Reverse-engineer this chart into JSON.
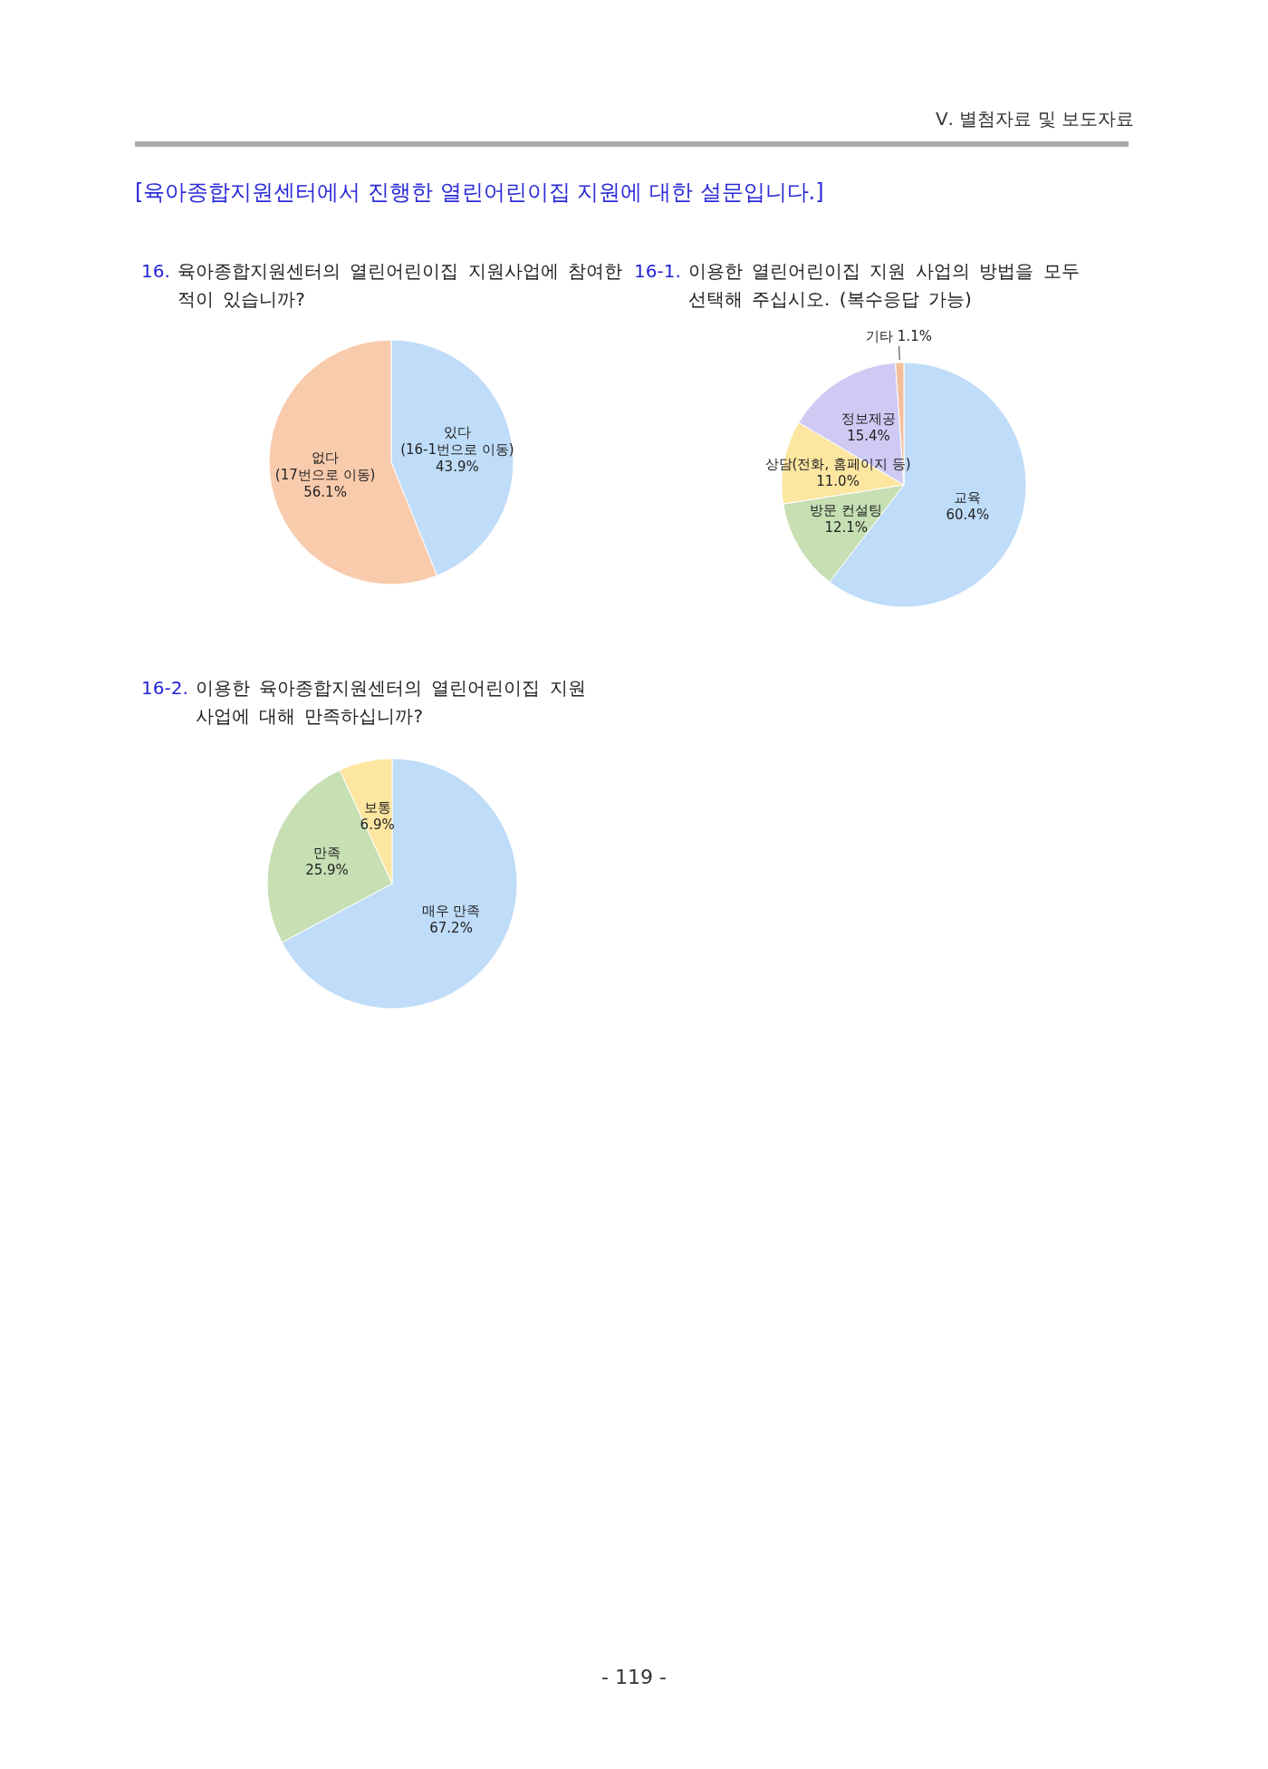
{
  "chart_data": [
    {
      "type": "pie",
      "title": "16. 육아종합지원센터의 열린어린이집 지원사업에 참여한\n적이 있습니까?",
      "categories": [
        "있다\n(16-1번으로 이동)",
        "없다\n(17번으로 이동)"
      ],
      "values": [
        43.9,
        56.1
      ],
      "value_labels": [
        "43.9%",
        "56.1%"
      ],
      "colors": [
        "#bfdcf8",
        "#f9cbad"
      ],
      "annotations": [
        "Ⅴ. 별첨자료 및 보도자료",
        "[육아종합지원센터에서 진행한 열린어린이집 지원에 대한 설문입니다.]"
      ]
    },
    {
      "type": "pie",
      "title": "16-1. 이용한 열린어린이집 지원 사업의 방법을 모두\n선택해 주십시오. (복수응답 가능)",
      "categories": [
        "교육",
        "방문 컨설팅",
        "상담(전화, 홈페이지 등)",
        "정보제공",
        "기타"
      ],
      "values": [
        60.4,
        12.1,
        11.0,
        15.4,
        1.1
      ],
      "value_labels": [
        "60.4%",
        "12.1%",
        "11.0%",
        "15.4%",
        "1.1%"
      ],
      "colors": [
        "#bfdcf8",
        "#c6dfb3",
        "#fce6a0",
        "#cfcaf4",
        "#f4bd9c"
      ]
    },
    {
      "type": "pie",
      "title": "16-2. 이용한 육아종합지원센터의 열린어린이집 지원\n사업에 대해 만족하십니까?",
      "categories": [
        "매우 만족",
        "만족",
        "보통"
      ],
      "values": [
        67.2,
        25.9,
        6.9
      ],
      "value_labels": [
        "67.2%",
        "25.9%",
        "6.9%"
      ],
      "colors": [
        "#bfdcf8",
        "#c6dfb3",
        "#fce6a0"
      ],
      "annotations": [
        "- 119 -"
      ]
    }
  ]
}
